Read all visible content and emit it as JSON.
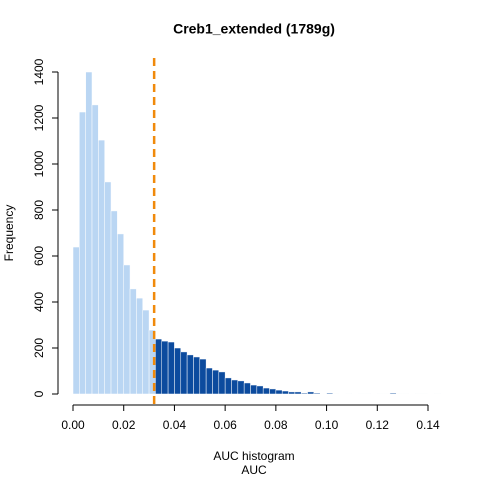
{
  "chart_data": {
    "type": "histogram",
    "title": "Creb1_extended (1789g)",
    "xlabel": "AUC histogram",
    "xlabel2": "AUC",
    "ylabel": "Frequency",
    "bins": [
      0,
      0.0025,
      0.005,
      0.0075,
      0.01,
      0.0125,
      0.015,
      0.0175,
      0.02,
      0.0225,
      0.025,
      0.0275,
      0.03,
      0.0325,
      0.035,
      0.0375,
      0.04,
      0.0425,
      0.045,
      0.0475,
      0.05,
      0.0525,
      0.055,
      0.0575,
      0.06,
      0.0625,
      0.065,
      0.0675,
      0.07,
      0.0725,
      0.075,
      0.0775,
      0.08,
      0.0825,
      0.085,
      0.0875,
      0.09,
      0.0925,
      0.095,
      0.0975,
      0.1,
      0.1025,
      0.105,
      0.1075,
      0.11,
      0.1125,
      0.115,
      0.1175,
      0.12,
      0.1225,
      0.125,
      0.1275,
      0.13,
      0.1325,
      0.135,
      0.1375,
      0.14,
      0.1425,
      0.145
    ],
    "values": [
      639,
      1226,
      1400,
      1257,
      1104,
      922,
      796,
      696,
      561,
      457,
      417,
      365,
      278,
      239,
      230,
      226,
      200,
      183,
      170,
      161,
      152,
      113,
      104,
      96,
      70,
      61,
      57,
      48,
      39,
      35,
      26,
      22,
      17,
      13,
      9,
      9,
      4,
      9,
      4,
      2,
      4,
      1,
      2,
      1,
      2,
      1,
      1,
      2,
      1,
      1,
      4,
      1,
      1,
      2,
      1,
      1,
      2,
      1
    ],
    "threshold": 0.032,
    "color_below": "#bad6f3",
    "color_above": "#0c4b9e",
    "threshold_color": "#f08a0b",
    "xlim": [
      0,
      0.14
    ],
    "ylim": [
      0,
      1400
    ],
    "xticks": [
      {
        "value": 0,
        "label": "0.00"
      },
      {
        "value": 0.02,
        "label": "0.02"
      },
      {
        "value": 0.04,
        "label": "0.04"
      },
      {
        "value": 0.06,
        "label": "0.06"
      },
      {
        "value": 0.08,
        "label": "0.08"
      },
      {
        "value": 0.1,
        "label": "0.10"
      },
      {
        "value": 0.12,
        "label": "0.12"
      },
      {
        "value": 0.14,
        "label": "0.14"
      }
    ],
    "yticks": [
      0,
      200,
      400,
      600,
      800,
      1000,
      1200,
      1400
    ]
  }
}
